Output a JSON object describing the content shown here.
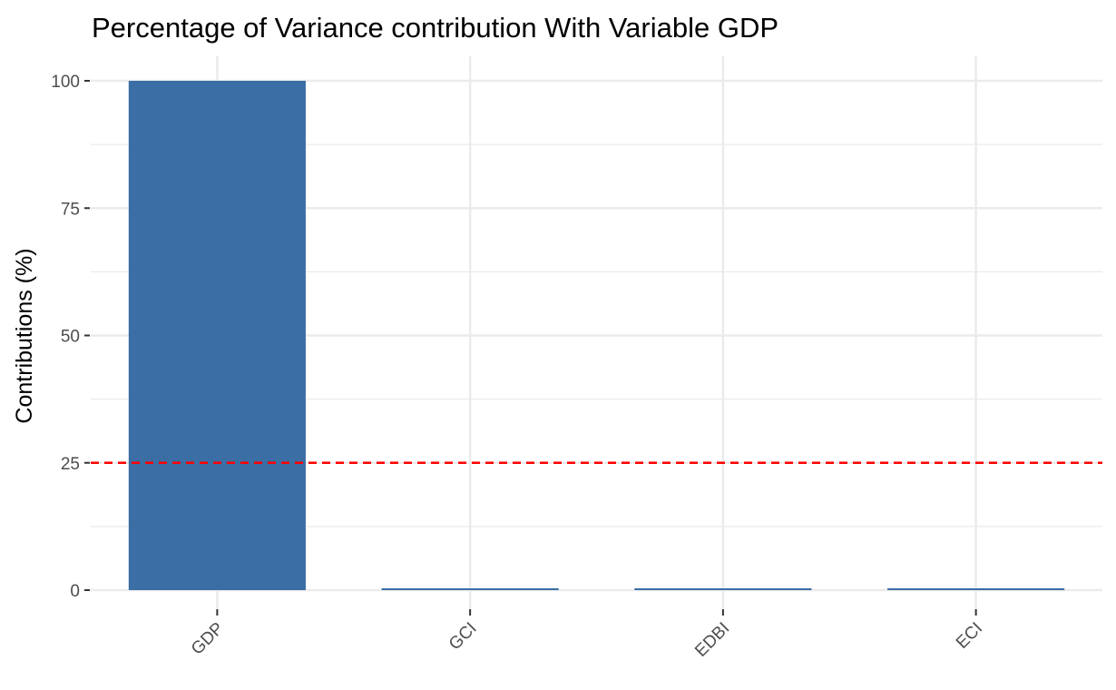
{
  "chart_data": {
    "type": "bar",
    "title": "Percentage of Variance contribution With Variable GDP",
    "xlabel": "",
    "ylabel": "Contributions (%)",
    "categories": [
      "GDP",
      "GCI",
      "EDBI",
      "ECI"
    ],
    "values": [
      100,
      0.1,
      0.1,
      0.1
    ],
    "ylim": [
      0,
      105
    ],
    "yticks": [
      "0",
      "25",
      "50",
      "75",
      "100"
    ],
    "reference_line": {
      "value": 25,
      "style": "dashed",
      "color": "#ff0000"
    },
    "bar_color": "#3a6ea5",
    "grid": true,
    "legend": "none"
  }
}
